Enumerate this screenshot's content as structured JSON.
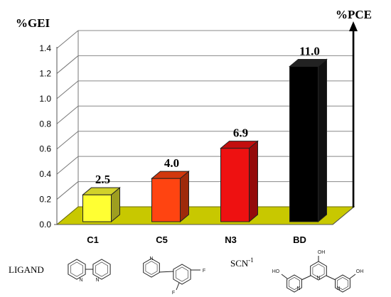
{
  "chart_data": {
    "type": "bar",
    "ylabel": "%GEI",
    "y2label": "%PCE",
    "ylim": [
      0,
      1.4
    ],
    "yticks": [
      "0.0",
      "0.2",
      "0.4",
      "0.6",
      "0.8",
      "1.0",
      "1.2",
      "1.4"
    ],
    "categories": [
      "C1",
      "C5",
      "N3",
      "BD"
    ],
    "values": [
      0.27,
      0.4,
      0.64,
      1.29
    ],
    "data_labels": [
      "2.5",
      "4.0",
      "6.9",
      "11.0"
    ],
    "bar_colors": [
      "#ffff33",
      "#ff4411",
      "#ee1111",
      "#000000"
    ],
    "floor_color": "#c8c800",
    "grid": true,
    "ligand_label": "LIGAND",
    "ligands": [
      {
        "category": "C1",
        "kind": "structure",
        "text": ""
      },
      {
        "category": "C5",
        "kind": "structure",
        "text": ""
      },
      {
        "category": "N3",
        "kind": "text",
        "text": "SCN",
        "superscript": "-1"
      },
      {
        "category": "BD",
        "kind": "structure",
        "text": ""
      }
    ]
  }
}
